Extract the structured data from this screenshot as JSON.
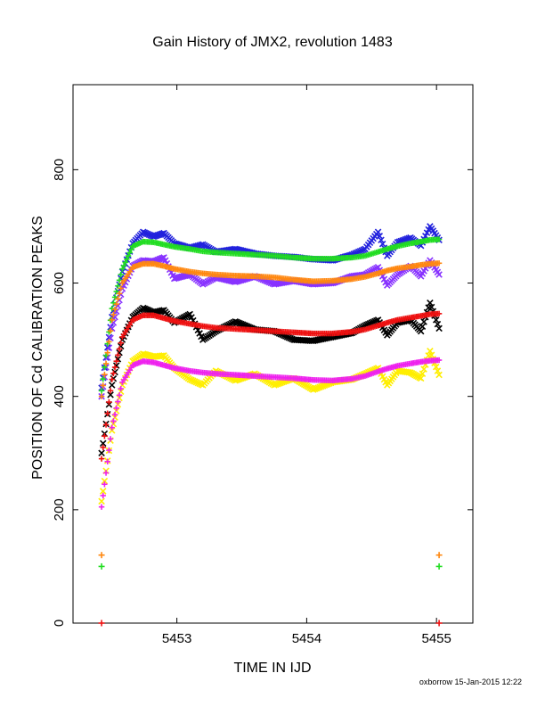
{
  "chart_data": {
    "type": "line",
    "title": "Gain History of JMX2, revolution 1483",
    "xlabel": "TIME IN IJD",
    "ylabel": "POSITION OF Cd CALIBRATION PEAKS",
    "xlim": [
      5452.2,
      5455.28
    ],
    "ylim": [
      0,
      950
    ],
    "x_ticks": [
      5453,
      5454,
      5455
    ],
    "y_ticks": [
      0,
      200,
      400,
      600,
      800
    ],
    "grid": false,
    "legend": "none",
    "series": [
      {
        "marker": "x",
        "color": "#2222dd",
        "points": [
          [
            5452.42,
            415
          ],
          [
            5452.5,
            540
          ],
          [
            5452.58,
            620
          ],
          [
            5452.66,
            670
          ],
          [
            5452.74,
            690
          ],
          [
            5452.82,
            682
          ],
          [
            5452.9,
            688
          ],
          [
            5452.98,
            670
          ],
          [
            5453.1,
            662
          ],
          [
            5453.2,
            668
          ],
          [
            5453.3,
            655
          ],
          [
            5453.45,
            660
          ],
          [
            5453.6,
            652
          ],
          [
            5453.75,
            648
          ],
          [
            5453.9,
            646
          ],
          [
            5454.05,
            642
          ],
          [
            5454.2,
            640
          ],
          [
            5454.35,
            650
          ],
          [
            5454.45,
            660
          ],
          [
            5454.55,
            690
          ],
          [
            5454.62,
            648
          ],
          [
            5454.7,
            672
          ],
          [
            5454.8,
            680
          ],
          [
            5454.88,
            666
          ],
          [
            5454.95,
            700
          ],
          [
            5455.02,
            676
          ]
        ]
      },
      {
        "marker": "x",
        "color": "#8833ff",
        "points": [
          [
            5452.42,
            400
          ],
          [
            5452.5,
            520
          ],
          [
            5452.58,
            590
          ],
          [
            5452.66,
            630
          ],
          [
            5452.74,
            640
          ],
          [
            5452.82,
            638
          ],
          [
            5452.9,
            645
          ],
          [
            5452.98,
            608
          ],
          [
            5453.1,
            615
          ],
          [
            5453.2,
            598
          ],
          [
            5453.3,
            610
          ],
          [
            5453.45,
            602
          ],
          [
            5453.6,
            612
          ],
          [
            5453.75,
            598
          ],
          [
            5453.9,
            604
          ],
          [
            5454.05,
            598
          ],
          [
            5454.2,
            600
          ],
          [
            5454.35,
            612
          ],
          [
            5454.45,
            615
          ],
          [
            5454.55,
            628
          ],
          [
            5454.62,
            596
          ],
          [
            5454.7,
            615
          ],
          [
            5454.8,
            630
          ],
          [
            5454.88,
            612
          ],
          [
            5454.95,
            640
          ],
          [
            5455.02,
            615
          ]
        ]
      },
      {
        "marker": "x",
        "color": "#000000",
        "points": [
          [
            5452.42,
            300
          ],
          [
            5452.5,
            420
          ],
          [
            5452.58,
            500
          ],
          [
            5452.66,
            540
          ],
          [
            5452.74,
            556
          ],
          [
            5452.82,
            548
          ],
          [
            5452.9,
            552
          ],
          [
            5452.98,
            530
          ],
          [
            5453.1,
            545
          ],
          [
            5453.2,
            500
          ],
          [
            5453.3,
            515
          ],
          [
            5453.45,
            532
          ],
          [
            5453.6,
            518
          ],
          [
            5453.75,
            515
          ],
          [
            5453.9,
            500
          ],
          [
            5454.05,
            498
          ],
          [
            5454.2,
            505
          ],
          [
            5454.35,
            512
          ],
          [
            5454.45,
            525
          ],
          [
            5454.55,
            535
          ],
          [
            5454.62,
            508
          ],
          [
            5454.7,
            530
          ],
          [
            5454.8,
            535
          ],
          [
            5454.88,
            515
          ],
          [
            5454.95,
            565
          ],
          [
            5455.02,
            520
          ]
        ]
      },
      {
        "marker": "x",
        "color": "#ffee00",
        "points": [
          [
            5452.42,
            215
          ],
          [
            5452.5,
            340
          ],
          [
            5452.58,
            420
          ],
          [
            5452.66,
            462
          ],
          [
            5452.74,
            475
          ],
          [
            5452.82,
            470
          ],
          [
            5452.9,
            472
          ],
          [
            5452.98,
            450
          ],
          [
            5453.1,
            430
          ],
          [
            5453.2,
            420
          ],
          [
            5453.3,
            445
          ],
          [
            5453.45,
            428
          ],
          [
            5453.6,
            440
          ],
          [
            5453.75,
            420
          ],
          [
            5453.9,
            432
          ],
          [
            5454.05,
            412
          ],
          [
            5454.2,
            425
          ],
          [
            5454.35,
            430
          ],
          [
            5454.45,
            440
          ],
          [
            5454.55,
            450
          ],
          [
            5454.62,
            420
          ],
          [
            5454.7,
            445
          ],
          [
            5454.8,
            442
          ],
          [
            5454.88,
            432
          ],
          [
            5454.95,
            480
          ],
          [
            5455.02,
            438
          ]
        ]
      },
      {
        "marker": "+",
        "color": "#22dd22",
        "points": [
          [
            5452.42,
            410
          ],
          [
            5452.5,
            555
          ],
          [
            5452.58,
            625
          ],
          [
            5452.66,
            665
          ],
          [
            5452.74,
            673
          ],
          [
            5452.82,
            672
          ],
          [
            5452.9,
            668
          ],
          [
            5452.98,
            664
          ],
          [
            5453.1,
            660
          ],
          [
            5453.2,
            656
          ],
          [
            5453.3,
            654
          ],
          [
            5453.45,
            652
          ],
          [
            5453.6,
            650
          ],
          [
            5453.75,
            648
          ],
          [
            5453.9,
            645
          ],
          [
            5454.05,
            643
          ],
          [
            5454.2,
            643
          ],
          [
            5454.35,
            645
          ],
          [
            5454.45,
            648
          ],
          [
            5454.55,
            655
          ],
          [
            5454.62,
            660
          ],
          [
            5454.7,
            665
          ],
          [
            5454.8,
            670
          ],
          [
            5454.88,
            673
          ],
          [
            5454.95,
            676
          ],
          [
            5455.02,
            677
          ]
        ]
      },
      {
        "marker": "+",
        "color": "#ff8811",
        "points": [
          [
            5452.42,
            400
          ],
          [
            5452.5,
            535
          ],
          [
            5452.58,
            600
          ],
          [
            5452.66,
            628
          ],
          [
            5452.74,
            634
          ],
          [
            5452.82,
            634
          ],
          [
            5452.9,
            630
          ],
          [
            5452.98,
            625
          ],
          [
            5453.1,
            620
          ],
          [
            5453.2,
            617
          ],
          [
            5453.3,
            615
          ],
          [
            5453.45,
            613
          ],
          [
            5453.6,
            612
          ],
          [
            5453.75,
            610
          ],
          [
            5453.9,
            606
          ],
          [
            5454.05,
            603
          ],
          [
            5454.2,
            604
          ],
          [
            5454.35,
            607
          ],
          [
            5454.45,
            611
          ],
          [
            5454.55,
            617
          ],
          [
            5454.62,
            622
          ],
          [
            5454.7,
            626
          ],
          [
            5454.8,
            629
          ],
          [
            5454.88,
            632
          ],
          [
            5454.95,
            634
          ],
          [
            5455.02,
            635
          ]
        ]
      },
      {
        "marker": "+",
        "color": "#ee1111",
        "points": [
          [
            5452.42,
            290
          ],
          [
            5452.5,
            430
          ],
          [
            5452.58,
            505
          ],
          [
            5452.66,
            535
          ],
          [
            5452.74,
            543
          ],
          [
            5452.82,
            543
          ],
          [
            5452.9,
            538
          ],
          [
            5452.98,
            533
          ],
          [
            5453.1,
            528
          ],
          [
            5453.2,
            524
          ],
          [
            5453.3,
            521
          ],
          [
            5453.45,
            519
          ],
          [
            5453.6,
            517
          ],
          [
            5453.75,
            515
          ],
          [
            5453.9,
            513
          ],
          [
            5454.05,
            511
          ],
          [
            5454.2,
            511
          ],
          [
            5454.35,
            514
          ],
          [
            5454.45,
            518
          ],
          [
            5454.55,
            525
          ],
          [
            5454.62,
            530
          ],
          [
            5454.7,
            535
          ],
          [
            5454.8,
            539
          ],
          [
            5454.88,
            542
          ],
          [
            5454.95,
            545
          ],
          [
            5455.02,
            546
          ]
        ]
      },
      {
        "marker": "+",
        "color": "#ee22ee",
        "points": [
          [
            5452.42,
            205
          ],
          [
            5452.5,
            345
          ],
          [
            5452.58,
            425
          ],
          [
            5452.66,
            455
          ],
          [
            5452.74,
            462
          ],
          [
            5452.82,
            460
          ],
          [
            5452.9,
            455
          ],
          [
            5452.98,
            450
          ],
          [
            5453.1,
            445
          ],
          [
            5453.2,
            442
          ],
          [
            5453.3,
            440
          ],
          [
            5453.45,
            438
          ],
          [
            5453.6,
            436
          ],
          [
            5453.75,
            434
          ],
          [
            5453.9,
            432
          ],
          [
            5454.05,
            429
          ],
          [
            5454.2,
            428
          ],
          [
            5454.35,
            431
          ],
          [
            5454.45,
            436
          ],
          [
            5454.55,
            444
          ],
          [
            5454.62,
            449
          ],
          [
            5454.7,
            454
          ],
          [
            5454.8,
            458
          ],
          [
            5454.88,
            461
          ],
          [
            5454.95,
            463
          ],
          [
            5455.02,
            464
          ]
        ]
      }
    ],
    "isolated_points": [
      {
        "x": 5452.42,
        "y": 120,
        "marker": "+",
        "color": "#ff8811"
      },
      {
        "x": 5452.42,
        "y": 100,
        "marker": "+",
        "color": "#22dd22"
      },
      {
        "x": 5455.02,
        "y": 120,
        "marker": "+",
        "color": "#ff8811"
      },
      {
        "x": 5455.02,
        "y": 100,
        "marker": "+",
        "color": "#22dd22"
      },
      {
        "x": 5452.42,
        "y": 0,
        "marker": "+",
        "color": "#ee1111"
      },
      {
        "x": 5455.02,
        "y": 0,
        "marker": "+",
        "color": "#ee1111"
      }
    ]
  },
  "footer": "oxborrow 15-Jan-2015 12:22"
}
